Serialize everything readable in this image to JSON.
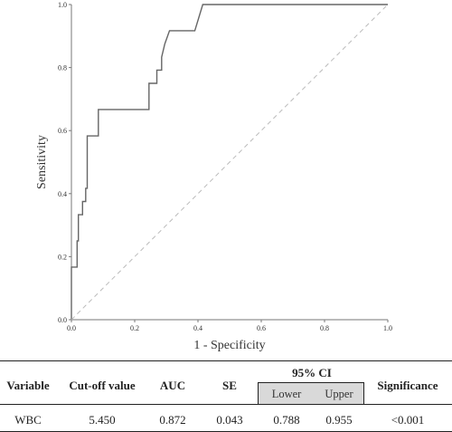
{
  "chart_data": {
    "type": "line",
    "xlabel": "1 - Specificity",
    "ylabel": "Sensitivity",
    "xlim": [
      0,
      1
    ],
    "ylim": [
      0,
      1
    ],
    "x_ticks": [
      "0.0",
      "0.2",
      "0.4",
      "0.6",
      "0.8",
      "1.0"
    ],
    "y_ticks": [
      "0.0",
      "0.2",
      "0.4",
      "0.6",
      "0.8",
      "1.0"
    ],
    "grid": false,
    "series": [
      {
        "kind": "roc-curve",
        "color": "#666666",
        "points": [
          [
            0.0,
            0.0
          ],
          [
            0.0,
            0.167
          ],
          [
            0.018,
            0.167
          ],
          [
            0.018,
            0.25
          ],
          [
            0.022,
            0.25
          ],
          [
            0.022,
            0.333
          ],
          [
            0.035,
            0.333
          ],
          [
            0.035,
            0.375
          ],
          [
            0.045,
            0.375
          ],
          [
            0.045,
            0.417
          ],
          [
            0.05,
            0.417
          ],
          [
            0.05,
            0.583
          ],
          [
            0.085,
            0.583
          ],
          [
            0.085,
            0.667
          ],
          [
            0.245,
            0.667
          ],
          [
            0.245,
            0.75
          ],
          [
            0.27,
            0.75
          ],
          [
            0.27,
            0.792
          ],
          [
            0.285,
            0.792
          ],
          [
            0.285,
            0.833
          ],
          [
            0.295,
            0.875
          ],
          [
            0.31,
            0.917
          ],
          [
            0.39,
            0.917
          ],
          [
            0.415,
            1.0
          ],
          [
            1.0,
            1.0
          ]
        ]
      },
      {
        "kind": "reference-diagonal",
        "style": "dashed",
        "color": "#bbbbbb",
        "points": [
          [
            0,
            0
          ],
          [
            1,
            1
          ]
        ]
      }
    ]
  },
  "table": {
    "headers": {
      "variable": "Variable",
      "cutoff": "Cut-off value",
      "auc": "AUC",
      "se": "SE",
      "ci": "95% CI",
      "lower": "Lower",
      "upper": "Upper",
      "significance": "Significance"
    },
    "row": {
      "variable": "WBC",
      "cutoff": "5.450",
      "auc": "0.872",
      "se": "0.043",
      "lower": "0.788",
      "upper": "0.955",
      "significance": "<0.001"
    }
  }
}
